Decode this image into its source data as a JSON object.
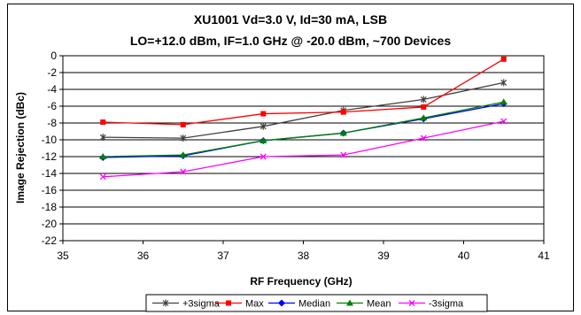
{
  "chart_data": {
    "type": "line",
    "title_line1": "XU1001 Vd=3.0 V, Id=30 mA, LSB",
    "title_line2": "LO=+12.0 dBm, IF=1.0 GHz @ -20.0 dBm, ~700 Devices",
    "xlabel": "RF Frequency (GHz)",
    "ylabel": "Image Rejection (dBc)",
    "xlim": [
      35,
      41
    ],
    "ylim": [
      -22,
      0
    ],
    "xticks": [
      "35",
      "36",
      "37",
      "38",
      "39",
      "40",
      "41"
    ],
    "yticks": [
      "0",
      "-2",
      "-4",
      "-6",
      "-8",
      "-10",
      "-12",
      "-14",
      "-16",
      "-18",
      "-20",
      "-22"
    ],
    "grid": "horizontal",
    "legend_position": "bottom",
    "x": [
      35.5,
      36.5,
      37.5,
      38.5,
      39.5,
      40.5
    ],
    "series": [
      {
        "name": "+3sigma",
        "color": "#404040",
        "marker": "star",
        "values": [
          -9.7,
          -9.8,
          -8.4,
          -6.5,
          -5.2,
          -3.2
        ]
      },
      {
        "name": "Max",
        "color": "#ff0000",
        "marker": "square",
        "values": [
          -7.9,
          -8.2,
          -6.9,
          -6.7,
          -6.1,
          -0.4
        ]
      },
      {
        "name": "Median",
        "color": "#0000ff",
        "marker": "diamond",
        "values": [
          -12.1,
          -11.9,
          -10.1,
          -9.2,
          -7.5,
          -5.7
        ]
      },
      {
        "name": "Mean",
        "color": "#008000",
        "marker": "triangle",
        "values": [
          -12.0,
          -11.8,
          -10.1,
          -9.2,
          -7.4,
          -5.5
        ]
      },
      {
        "name": "-3sigma",
        "color": "#ff00ff",
        "marker": "x",
        "values": [
          -14.4,
          -13.8,
          -12.0,
          -11.8,
          -9.8,
          -7.8
        ]
      }
    ]
  }
}
